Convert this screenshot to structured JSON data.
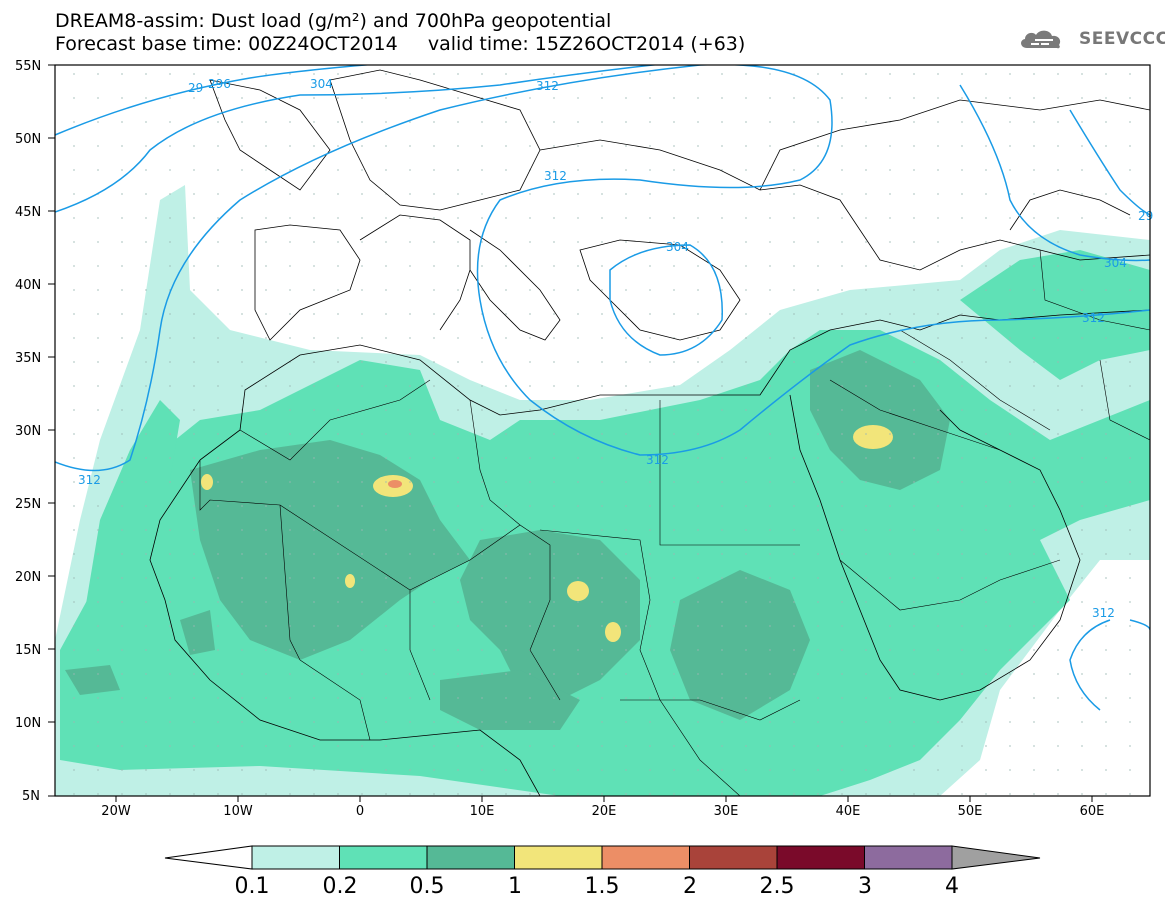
{
  "header": {
    "title_line1": "DREAM8-assim: Dust load (g/m²) and 700hPa geopotential",
    "title_line2": "Forecast base time: 00Z24OCT2014     valid time: 15Z26OCT2014 (+63)",
    "logo_text": "SEEVCCC"
  },
  "axes": {
    "lat_labels": [
      "55N",
      "50N",
      "45N",
      "40N",
      "35N",
      "30N",
      "25N",
      "20N",
      "15N",
      "10N",
      "5N"
    ],
    "lon_labels": [
      "20W",
      "10W",
      "0",
      "10E",
      "20E",
      "30E",
      "40E",
      "50E",
      "60E"
    ]
  },
  "contours": {
    "color": "#1a9be6",
    "labels": [
      "29",
      "296",
      "304",
      "312",
      "312",
      "304",
      "312",
      "312",
      "304",
      "312",
      "312",
      "29"
    ]
  },
  "colorbar": {
    "colors": [
      "#bff0e6",
      "#5fe1b6",
      "#55b996",
      "#f2e57a",
      "#ec8e66",
      "#a9433a",
      "#7a0a2a",
      "#8d6b9e",
      "#a0a0a0"
    ],
    "labels": [
      "0.1",
      "0.2",
      "0.5",
      "1",
      "1.5",
      "2",
      "2.5",
      "3",
      "4"
    ]
  },
  "colors": {
    "dust_light": "#bff0e6",
    "dust_mid": "#5fe1b6",
    "dust_dark": "#55b996",
    "dust_yellow": "#f2e57a",
    "dust_orange": "#ec8e66",
    "border": "#000000"
  }
}
